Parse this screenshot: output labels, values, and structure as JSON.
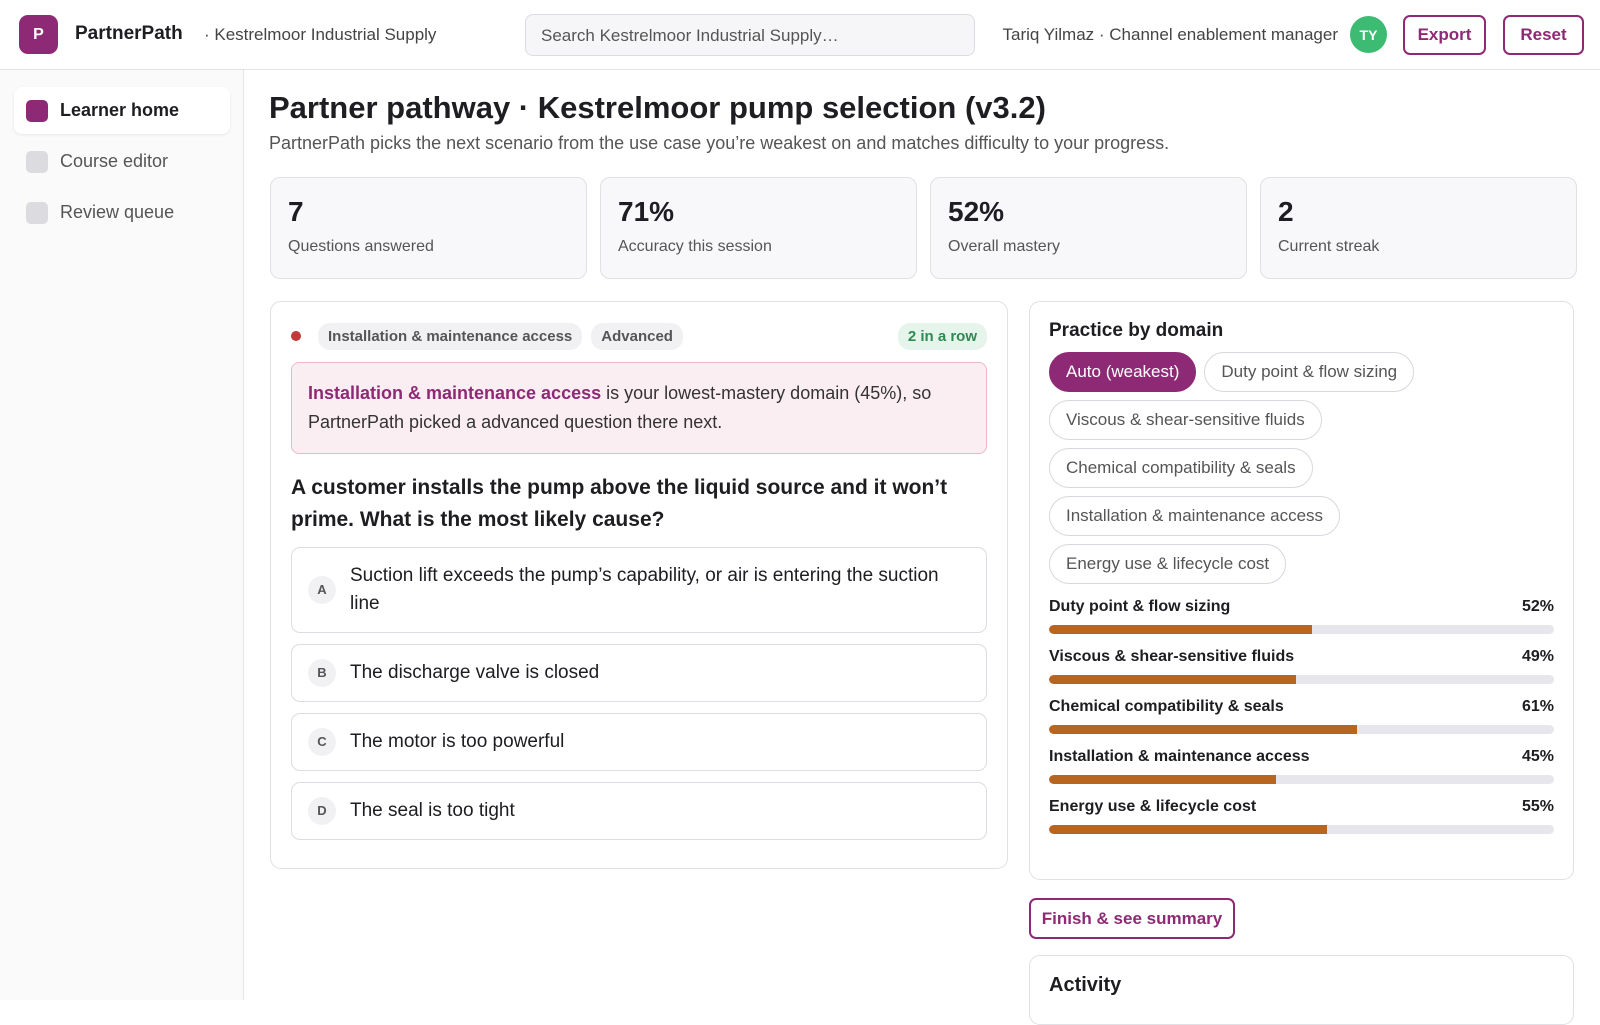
{
  "header": {
    "logo": "P",
    "brand": "PartnerPath",
    "org": "· Kestrelmoor Industrial Supply",
    "search_placeholder": "Search Kestrelmoor Industrial Supply…",
    "user": "Tariq Yilmaz · Channel enablement manager",
    "avatar": "TY",
    "actions": [
      "Export",
      "Reset"
    ]
  },
  "sidebar": {
    "items": [
      "Learner home",
      "Course editor",
      "Review queue"
    ],
    "active": 0
  },
  "page": {
    "title": "Partner pathway · Kestrelmoor pump selection (v3.2)",
    "subtitle": "PartnerPath picks the next scenario from the use case you’re weakest on and matches difficulty to your progress."
  },
  "stats": [
    {
      "value": "7",
      "label": "Questions answered"
    },
    {
      "value": "71%",
      "label": "Accuracy this session"
    },
    {
      "value": "52%",
      "label": "Overall mastery"
    },
    {
      "value": "2",
      "label": "Current streak"
    }
  ],
  "question": {
    "tags": [
      "Installation & maintenance access",
      "Advanced"
    ],
    "streak": "2 in a row",
    "callout": {
      "highlight": "Installation & maintenance access",
      "text": "is your lowest-mastery domain (45%), so PartnerPath picked a advanced question there next."
    },
    "prompt": "A customer installs the pump above the liquid source and it won’t prime. What is the most likely cause?",
    "options": [
      {
        "key": "A",
        "text": "Suction lift exceeds the pump’s capability, or air is entering the suction line"
      },
      {
        "key": "B",
        "text": "The discharge valve is closed"
      },
      {
        "key": "C",
        "text": "The motor is too powerful"
      },
      {
        "key": "D",
        "text": "The seal is too tight"
      }
    ]
  },
  "practice": {
    "title": "Practice by domain",
    "chips": [
      "Auto (weakest)",
      "Duty point & flow sizing",
      "Viscous & shear-sensitive fluids",
      "Chemical compatibility & seals",
      "Installation & maintenance access",
      "Energy use & lifecycle cost"
    ],
    "selected_chip": 0,
    "domains": [
      {
        "name": "Duty point & flow sizing",
        "value": 52,
        "label": "52%"
      },
      {
        "name": "Viscous & shear-sensitive fluids",
        "value": 49,
        "label": "49%"
      },
      {
        "name": "Chemical compatibility & seals",
        "value": 61,
        "label": "61%"
      },
      {
        "name": "Installation & maintenance access",
        "value": 45,
        "label": "45%"
      },
      {
        "name": "Energy use & lifecycle cost",
        "value": 55,
        "label": "55%"
      }
    ]
  },
  "finish": "Finish & see summary",
  "activity": {
    "title": "Activity"
  }
}
